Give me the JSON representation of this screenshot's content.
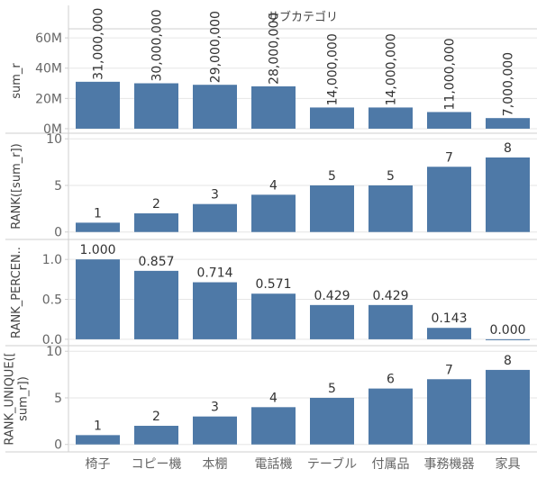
{
  "chart_data": {
    "type": "bar",
    "column_header": "サブカテゴリ",
    "categories": [
      "椅子",
      "コピー機",
      "本棚",
      "電話機",
      "テーブル",
      "付属品",
      "事務機器",
      "家具"
    ],
    "colors": {
      "bar": "#4e79a7",
      "grid": "#e6e6e6",
      "border": "#cfcfcf"
    },
    "panels": [
      {
        "ylabel": "sum_r",
        "values": [
          31000000,
          30000000,
          29000000,
          28000000,
          14000000,
          14000000,
          11000000,
          7000000
        ],
        "labels": [
          "31,000,000",
          "30,000,000",
          "29,000,000",
          "28,000,000",
          "14,000,000",
          "14,000,000",
          "11,000,000",
          "7,000,000"
        ],
        "label_orientation": "vertical",
        "ylim": [
          -3000000,
          66000000
        ],
        "ticks": [
          0,
          20000000,
          40000000,
          60000000
        ],
        "tick_labels": [
          "0M",
          "20M",
          "40M",
          "60M"
        ]
      },
      {
        "ylabel": "RANK([sum_r])",
        "values": [
          1,
          2,
          3,
          4,
          5,
          5,
          7,
          8
        ],
        "labels": [
          "1",
          "2",
          "3",
          "4",
          "5",
          "5",
          "7",
          "8"
        ],
        "label_orientation": "horizontal",
        "ylim": [
          -0.8,
          10.6
        ],
        "ticks": [
          0,
          5,
          10
        ],
        "tick_labels": [
          "0",
          "5",
          "10"
        ]
      },
      {
        "ylabel": "RANK_PERCEN..",
        "values": [
          1.0,
          0.857,
          0.714,
          0.571,
          0.429,
          0.429,
          0.143,
          0.0
        ],
        "labels": [
          "1.000",
          "0.857",
          "0.714",
          "0.571",
          "0.429",
          "0.429",
          "0.143",
          "0.000"
        ],
        "label_orientation": "horizontal",
        "ylim": [
          -0.08,
          1.25
        ],
        "ticks": [
          0,
          0.5,
          1.0
        ],
        "tick_labels": [
          "0.0",
          "0.5",
          "1.0"
        ]
      },
      {
        "ylabel": "RANK_UNIQUE([\nsum_r])",
        "values": [
          1,
          2,
          3,
          4,
          5,
          6,
          7,
          8
        ],
        "labels": [
          "1",
          "2",
          "3",
          "4",
          "5",
          "6",
          "7",
          "8"
        ],
        "label_orientation": "horizontal",
        "ylim": [
          -0.8,
          10.6
        ],
        "ticks": [
          0,
          5,
          10
        ],
        "tick_labels": [
          "0",
          "5",
          "10"
        ]
      }
    ]
  }
}
